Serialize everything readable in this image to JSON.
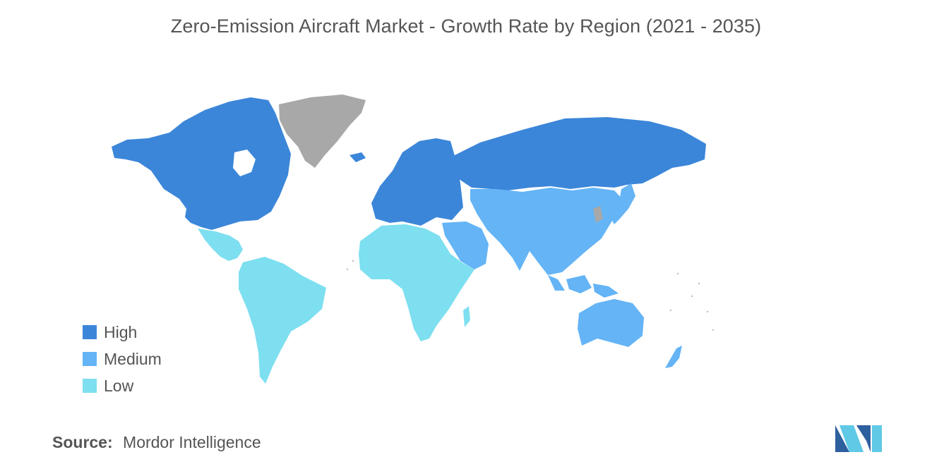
{
  "title": "Zero-Emission Aircraft Market - Growth Rate by Region (2021 - 2035)",
  "colors": {
    "high": "#3b86d9",
    "medium": "#64b4f6",
    "low": "#7ddff0",
    "no_data": "#a8a8a8"
  },
  "legend": [
    {
      "label": "High",
      "color": "#3b86d9"
    },
    {
      "label": "Medium",
      "color": "#64b4f6"
    },
    {
      "label": "Low",
      "color": "#7ddff0"
    }
  ],
  "regions": [
    {
      "name": "North America",
      "category": "High"
    },
    {
      "name": "Europe",
      "category": "High"
    },
    {
      "name": "Russia",
      "category": "High"
    },
    {
      "name": "Asia-Pacific",
      "category": "Medium"
    },
    {
      "name": "Middle East",
      "category": "Medium"
    },
    {
      "name": "Australia",
      "category": "Medium"
    },
    {
      "name": "Latin America",
      "category": "Low"
    },
    {
      "name": "Africa",
      "category": "Low"
    }
  ],
  "source": {
    "label": "Source:",
    "value": "Mordor Intelligence"
  },
  "logo_icon": "mordor-intelligence-logo-icon"
}
